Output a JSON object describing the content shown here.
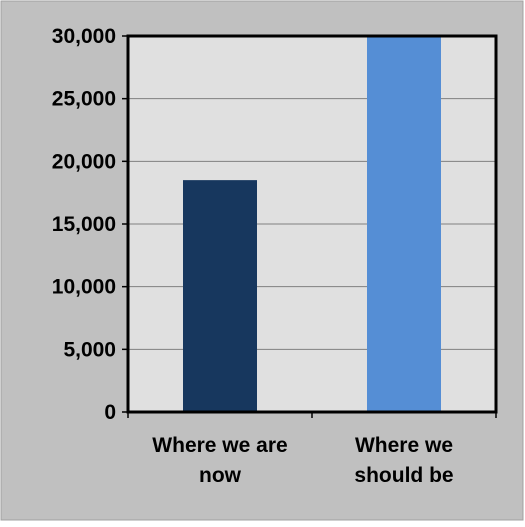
{
  "chart_data": {
    "type": "bar",
    "title": "",
    "xlabel": "",
    "ylabel": "",
    "categories": [
      "Where we are now",
      "Where we should be"
    ],
    "category_label_lines": [
      [
        "Where we are",
        "now"
      ],
      [
        "Where we",
        "should be"
      ]
    ],
    "values": [
      18500,
      30000
    ],
    "bar_colors": [
      "#17375e",
      "#558ed5"
    ],
    "ylim": [
      0,
      30000
    ],
    "y_ticks": [
      0,
      5000,
      10000,
      15000,
      20000,
      25000,
      30000
    ],
    "y_tick_labels": [
      "0",
      "5,000",
      "10,000",
      "15,000",
      "20,000",
      "25,000",
      "30,000"
    ],
    "grid": true,
    "legend": "none"
  },
  "colors": {
    "outer_background": "#c0c0c0",
    "plot_background": "#e0e0e0",
    "grid_line": "#808080",
    "plot_border": "#000000"
  }
}
